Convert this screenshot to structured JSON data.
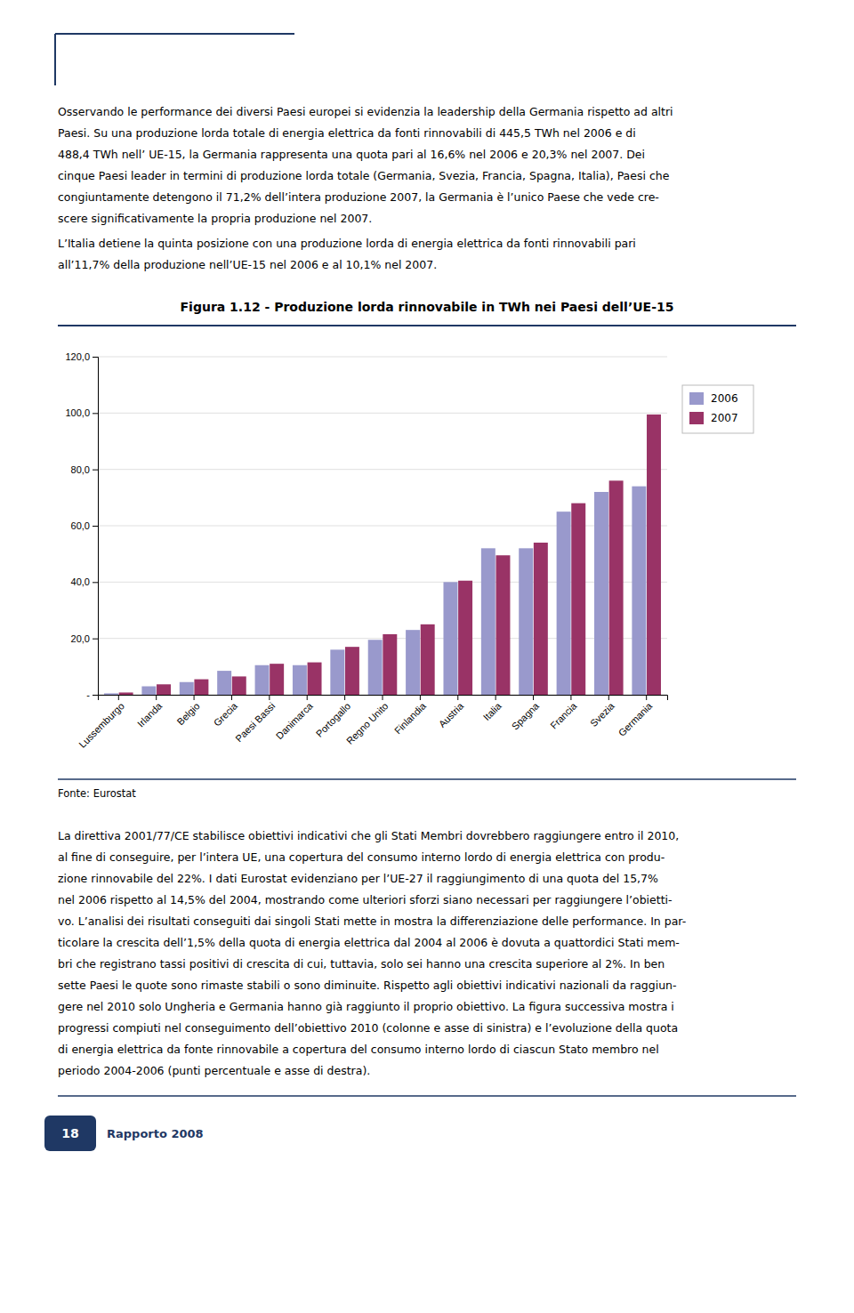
{
  "chart_data": {
    "type": "bar",
    "title": "Figura 1.12 - Produzione lorda rinnovabile in TWh nei Paesi dell’UE-15",
    "categories": [
      "Lussemburgo",
      "Irlanda",
      "Belgio",
      "Grecia",
      "Paesi Bassi",
      "Danimarca",
      "Portogallo",
      "Regno Unito",
      "Finlandia",
      "Austria",
      "Italia",
      "Spagna",
      "Francia",
      "Svezia",
      "Germania"
    ],
    "series": [
      {
        "name": "2006",
        "color": "#9999CC",
        "values": [
          0.5,
          3.0,
          4.5,
          8.5,
          10.5,
          10.5,
          16.0,
          19.5,
          23.0,
          40.0,
          52.0,
          52.0,
          65.0,
          72.0,
          74.0
        ]
      },
      {
        "name": "2007",
        "color": "#993366",
        "values": [
          0.8,
          3.7,
          5.5,
          6.5,
          11.0,
          11.5,
          17.0,
          21.5,
          25.0,
          40.5,
          49.5,
          54.0,
          68.0,
          76.0,
          99.5
        ]
      }
    ],
    "ylim": [
      0,
      120
    ],
    "yticks": [
      {
        "value": 0,
        "label": "-"
      },
      {
        "value": 20,
        "label": "20,0"
      },
      {
        "value": 40,
        "label": "40,0"
      },
      {
        "value": 60,
        "label": "60,0"
      },
      {
        "value": 80,
        "label": "80,0"
      },
      {
        "value": 100,
        "label": "100,0"
      },
      {
        "value": 120,
        "label": "120,0"
      }
    ],
    "grid": true,
    "legend": "right",
    "annotations": [
      "Fonte: Eurostat"
    ]
  },
  "body_top": [
    [
      "Osservando le performance dei diversi Paesi europei si evidenzia la leadership della Germania rispetto ad altri",
      "Paesi. Su una produzione lorda totale di energia elettrica da fonti rinnovabili di 445,5 TWh nel 2006 e di",
      "488,4 TWh nell’ UE-15, la Germania rappresenta una quota pari al 16,6% nel 2006 e 20,3% nel 2007. Dei",
      "cinque Paesi leader in termini di produzione lorda totale (Germania, Svezia, Francia, Spagna, Italia), Paesi che",
      "congiuntamente detengono il 71,2% dell’intera produzione 2007, la Germania è l’unico Paese che vede cre-",
      "scere significativamente la propria produzione nel 2007."
    ],
    [
      "L’Italia detiene la quinta posizione con una produzione lorda di energia elettrica da fonti rinnovabili pari",
      "all’11,7% della produzione nell’UE-15 nel 2006 e al 10,1% nel 2007."
    ]
  ],
  "body_bottom": [
    "La direttiva 2001/77/CE stabilisce obiettivi indicativi che gli Stati Membri dovrebbero raggiungere entro il 2010,",
    "al fine di conseguire, per l’intera UE, una copertura del consumo interno lordo di energia elettrica con produ-",
    "zione rinnovabile del 22%. I dati Eurostat evidenziano per l’UE-27 il raggiungimento di una quota del 15,7%",
    "nel 2006 rispetto al 14,5% del 2004, mostrando come ulteriori sforzi siano necessari per raggiungere l’obietti-",
    "vo. L’analisi dei risultati conseguiti dai singoli Stati mette in mostra la differenziazione delle performance. In par-",
    "ticolare la crescita dell’1,5% della quota di energia elettrica dal 2004 al 2006 è dovuta a quattordici Stati mem-",
    "bri che registrano tassi positivi di crescita di cui, tuttavia, solo sei hanno una crescita superiore al 2%. In ben",
    "sette Paesi le quote sono rimaste stabili o sono diminuite. Rispetto agli obiettivi indicativi nazionali da raggiun-",
    "gere nel 2010 solo Ungheria e Germania hanno già raggiunto il proprio obiettivo. La figura successiva mostra i",
    "progressi compiuti nel conseguimento dell’obiettivo 2010 (colonne e asse di sinistra) e l’evoluzione della quota",
    "di energia elettrica da fonte rinnovabile a copertura del consumo interno lordo di ciascun Stato membro nel",
    "periodo 2004-2006 (punti percentuale e asse di destra)."
  ],
  "page_number": "18",
  "footer": "Rapporto 2008"
}
